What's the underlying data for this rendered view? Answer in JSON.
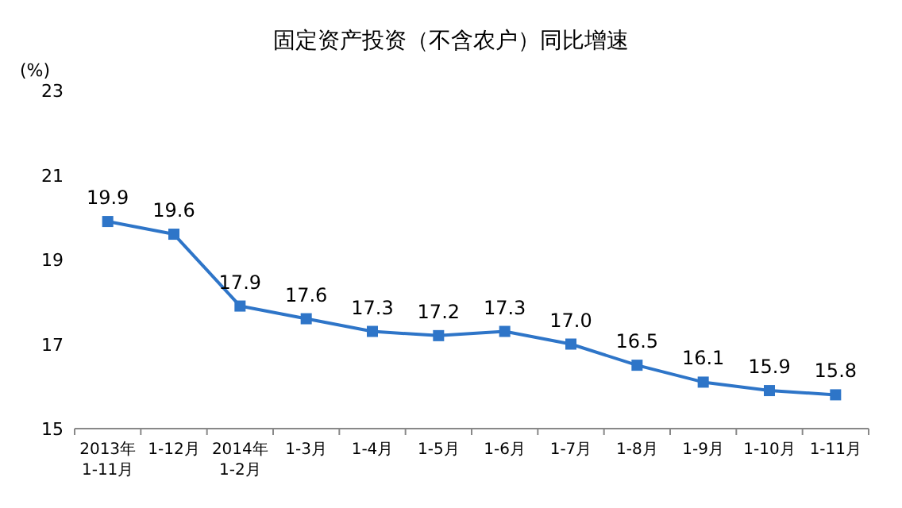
{
  "chart_data": {
    "type": "line",
    "title": "固定资产投资（不含农户）同比增速",
    "ylabel": "(%)",
    "categories": [
      "2013年\n1-11月",
      "1-12月",
      "2014年\n1-2月",
      "1-3月",
      "1-4月",
      "1-5月",
      "1-6月",
      "1-7月",
      "1-8月",
      "1-9月",
      "1-10月",
      "1-11月"
    ],
    "series": [
      {
        "color": "#2e75c8",
        "values": [
          19.9,
          19.6,
          17.9,
          17.6,
          17.3,
          17.2,
          17.3,
          17.0,
          16.5,
          16.1,
          15.9,
          15.8
        ],
        "value_labels": [
          "19.9",
          "19.6",
          "17.9",
          "17.6",
          "17.3",
          "17.2",
          "17.3",
          "17.0",
          "16.5",
          "16.1",
          "15.9",
          "15.8"
        ]
      }
    ],
    "ylim": [
      15,
      23
    ],
    "yticks": [
      15,
      17,
      19,
      21,
      23
    ],
    "marker": "square"
  }
}
